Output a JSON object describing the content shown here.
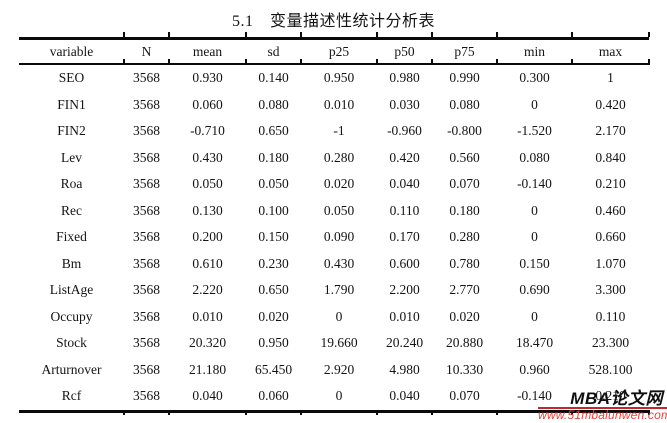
{
  "page_title": "5.1　变量描述性统计分析表",
  "chart_data": {
    "type": "table",
    "title": "5.1　变量描述性统计分析表",
    "columns": [
      "variable",
      "N",
      "mean",
      "sd",
      "p25",
      "p50",
      "p75",
      "min",
      "max"
    ],
    "rows": [
      [
        "SEO",
        "3568",
        "0.930",
        "0.140",
        "0.950",
        "0.980",
        "0.990",
        "0.300",
        "1"
      ],
      [
        "FIN1",
        "3568",
        "0.060",
        "0.080",
        "0.010",
        "0.030",
        "0.080",
        "0",
        "0.420"
      ],
      [
        "FIN2",
        "3568",
        "-0.710",
        "0.650",
        "-1",
        "-0.960",
        "-0.800",
        "-1.520",
        "2.170"
      ],
      [
        "Lev",
        "3568",
        "0.430",
        "0.180",
        "0.280",
        "0.420",
        "0.560",
        "0.080",
        "0.840"
      ],
      [
        "Roa",
        "3568",
        "0.050",
        "0.050",
        "0.020",
        "0.040",
        "0.070",
        "-0.140",
        "0.210"
      ],
      [
        "Rec",
        "3568",
        "0.130",
        "0.100",
        "0.050",
        "0.110",
        "0.180",
        "0",
        "0.460"
      ],
      [
        "Fixed",
        "3568",
        "0.200",
        "0.150",
        "0.090",
        "0.170",
        "0.280",
        "0",
        "0.660"
      ],
      [
        "Bm",
        "3568",
        "0.610",
        "0.230",
        "0.430",
        "0.600",
        "0.780",
        "0.150",
        "1.070"
      ],
      [
        "ListAge",
        "3568",
        "2.220",
        "0.650",
        "1.790",
        "2.200",
        "2.770",
        "0.690",
        "3.300"
      ],
      [
        "Occupy",
        "3568",
        "0.010",
        "0.020",
        "0",
        "0.010",
        "0.020",
        "0",
        "0.110"
      ],
      [
        "Stock",
        "3568",
        "20.320",
        "0.950",
        "19.660",
        "20.240",
        "20.880",
        "18.470",
        "23.300"
      ],
      [
        "Arturnover",
        "3568",
        "21.180",
        "65.450",
        "2.920",
        "4.980",
        "10.330",
        "0.960",
        "528.100"
      ],
      [
        "Rcf",
        "3568",
        "0.040",
        "0.060",
        "0",
        "0.040",
        "0.070",
        "-0.140",
        "0.210"
      ]
    ]
  },
  "watermark": {
    "brand": "MBA论文网",
    "url": "www.51mbalunwen.com",
    "brand_color": "#101010",
    "url_color": "#e8433e",
    "line_color": "#c1272d"
  }
}
